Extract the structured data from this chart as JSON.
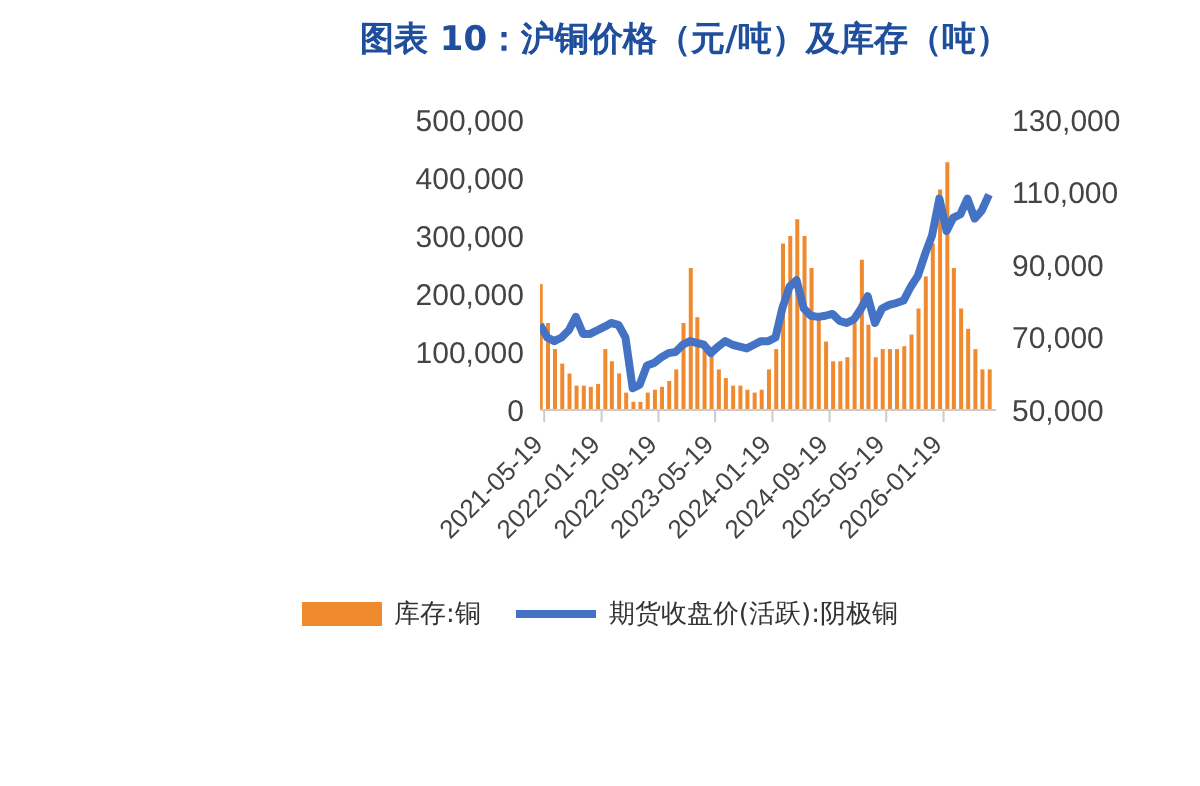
{
  "chart_data": {
    "type": "bar",
    "title": "图表 10：沪铜价格（元/吨）及库存（吨）",
    "x": [
      "2021-05",
      "2021-06",
      "2021-07",
      "2021-08",
      "2021-09",
      "2021-10",
      "2021-11",
      "2021-12",
      "2022-01",
      "2022-02",
      "2022-03",
      "2022-04",
      "2022-05",
      "2022-06",
      "2022-07",
      "2022-08",
      "2022-09",
      "2022-10",
      "2022-11",
      "2022-12",
      "2023-01",
      "2023-02",
      "2023-03",
      "2023-04",
      "2023-05",
      "2023-06",
      "2023-07",
      "2023-08",
      "2023-09",
      "2023-10",
      "2023-11",
      "2023-12",
      "2024-01",
      "2024-02",
      "2024-03",
      "2024-04",
      "2024-05",
      "2024-06",
      "2024-07",
      "2024-08",
      "2024-09",
      "2024-10",
      "2024-11",
      "2024-12",
      "2025-01",
      "2025-02",
      "2025-03",
      "2025-04",
      "2025-05",
      "2025-06",
      "2025-07",
      "2025-08",
      "2025-09",
      "2025-10",
      "2025-11",
      "2025-12",
      "2026-01",
      "2026-02",
      "2026-03",
      "2026-04",
      "2026-05",
      "2026-06",
      "2026-07",
      "2026-08"
    ],
    "series": [
      {
        "name": "库存:铜",
        "color": "#f08a2e",
        "values": [
          217000,
          150000,
          105000,
          80000,
          63000,
          42000,
          42000,
          40000,
          45000,
          105000,
          84000,
          63000,
          30000,
          14000,
          14000,
          30000,
          35000,
          40000,
          50000,
          70000,
          150000,
          245000,
          160000,
          118000,
          100000,
          70000,
          55000,
          42000,
          42000,
          35000,
          30000,
          35000,
          70000,
          105000,
          287000,
          300000,
          329000,
          300000,
          245000,
          160000,
          118000,
          84000,
          84000,
          91000,
          150000,
          259000,
          147000,
          91000,
          105000,
          105000,
          105000,
          110000,
          130000,
          175000,
          230000,
          287000,
          380000,
          427000,
          245000,
          175000,
          140000,
          105000,
          70000,
          70000
        ]
      },
      {
        "name": "期货收盘价(活跃):阴极铜",
        "type": "line",
        "axis": "y2",
        "color": "#4472c4",
        "values": [
          73500,
          70000,
          69000,
          70000,
          72000,
          75700,
          71000,
          71000,
          72000,
          73000,
          74000,
          73500,
          70000,
          56000,
          57000,
          62300,
          63000,
          64500,
          65700,
          66000,
          68000,
          69000,
          68500,
          68000,
          65700,
          67500,
          69000,
          68000,
          67500,
          67000,
          68000,
          69000,
          69000,
          70000,
          78000,
          84000,
          85800,
          78000,
          76000,
          75700,
          76000,
          76500,
          74600,
          74000,
          75000,
          78000,
          81400,
          74000,
          78000,
          79000,
          79500,
          80200,
          84000,
          87000,
          93000,
          98200,
          108300,
          99400,
          103000,
          104000,
          108300,
          102800,
          105000,
          109400
        ]
      }
    ],
    "xlim": [
      "2021-05-01",
      "2026-08-31"
    ],
    "xticks": [
      {
        "value": "2021-05-19",
        "label": "2021-05-19"
      },
      {
        "value": "2022-01-19",
        "label": "2022-01-19"
      },
      {
        "value": "2022-09-19",
        "label": "2022-09-19"
      },
      {
        "value": "2023-05-19",
        "label": "2023-05-19"
      },
      {
        "value": "2024-01-19",
        "label": "2024-01-19"
      },
      {
        "value": "2024-09-19",
        "label": "2024-09-19"
      },
      {
        "value": "2025-05-19",
        "label": "2025-05-19"
      },
      {
        "value": "2026-01-19",
        "label": "2026-01-19"
      }
    ],
    "ylim": [
      0,
      500000
    ],
    "yticks": [
      0,
      {
        "value": 100000,
        "label": "100,000"
      },
      {
        "value": 200000,
        "label": "200,000"
      },
      {
        "value": 300000,
        "label": "300,000"
      },
      {
        "value": 400000,
        "label": "400,000"
      },
      {
        "value": 500000,
        "label": "500,000"
      }
    ],
    "y2lim": [
      50000,
      130000
    ],
    "y2ticks": [
      {
        "value": 50000,
        "label": "50,000"
      },
      {
        "value": 70000,
        "label": "70,000"
      },
      {
        "value": 90000,
        "label": "90,000"
      },
      {
        "value": 110000,
        "label": "110,000"
      },
      {
        "value": 130000,
        "label": "130,000"
      }
    ],
    "grid": false,
    "legend": "bottom",
    "line_style": "solid",
    "marker": "none"
  }
}
